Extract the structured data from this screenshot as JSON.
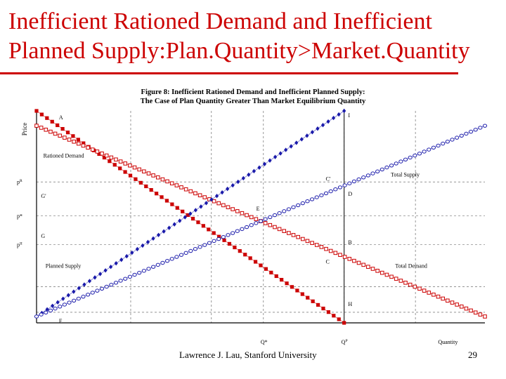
{
  "slide": {
    "title_line1": "Inefficient Rationed Demand and Inefficient",
    "title_line2": "Planned Supply:Plan.Quantity>Market.Quantity",
    "accent_color": "#cc0000",
    "footer": "Lawrence J. Lau, Stanford University",
    "page_number": "29"
  },
  "chart_data": {
    "type": "line",
    "title_line1": "Figure 8: Inefficient Rationed Demand and Inefficient Planned Supply:",
    "title_line2": "The Case of Plan Quantity Greater Than Market Equilibrium Quantity",
    "xlabel": "Quantity",
    "ylabel": "Price",
    "xlim": [
      0,
      100
    ],
    "ylim": [
      0,
      100
    ],
    "grid": true,
    "y_ticks": [
      {
        "label": "p^{II}",
        "value": 37
      },
      {
        "label": "p*",
        "value": 50.5
      },
      {
        "label": "p^{R}",
        "value": 66.5
      }
    ],
    "x_ticks": [
      {
        "label": "Q*",
        "value": 50.6
      },
      {
        "label": "Q^{P}",
        "value": 68.6
      },
      {
        "label": "Quantity",
        "value": 93
      }
    ],
    "x_gridlines": [
      21,
      39,
      50.6,
      68.6,
      84.5
    ],
    "y_gridlines": [
      5,
      17,
      37,
      50.5,
      66.5
    ],
    "plan_quantity_line": 68.6,
    "series": [
      {
        "name": "Rationed Demand",
        "style": "filled-square",
        "color": "#cc0000",
        "x": [
          0,
          68.6
        ],
        "y": [
          100,
          0
        ]
      },
      {
        "name": "Total Demand",
        "style": "hollow-square",
        "color": "#cc0000",
        "x": [
          0,
          100
        ],
        "y": [
          93,
          3
        ]
      },
      {
        "name": "Planned Supply",
        "style": "filled-diamond",
        "color": "#1a1aaa",
        "x": [
          0,
          68.6
        ],
        "y": [
          3,
          100
        ]
      },
      {
        "name": "Total Supply",
        "style": "hollow-diamond",
        "color": "#1a1aaa",
        "x": [
          0,
          100
        ],
        "y": [
          3,
          93
        ]
      }
    ],
    "annotations": [
      {
        "text": "A",
        "x": 5,
        "y": 97
      },
      {
        "text": "I",
        "x": 69.5,
        "y": 98
      },
      {
        "text": "Rationed Demand",
        "x": 1.5,
        "y": 79
      },
      {
        "text": "C'",
        "x": 64.5,
        "y": 68
      },
      {
        "text": "Total Supply",
        "x": 79,
        "y": 70
      },
      {
        "text": "G'",
        "x": 1,
        "y": 60
      },
      {
        "text": "D",
        "x": 69.5,
        "y": 61
      },
      {
        "text": "E",
        "x": 49,
        "y": 54
      },
      {
        "text": "G",
        "x": 1,
        "y": 41
      },
      {
        "text": "B",
        "x": 69.5,
        "y": 38
      },
      {
        "text": "C",
        "x": 64.5,
        "y": 29
      },
      {
        "text": "Planned Supply",
        "x": 2,
        "y": 27
      },
      {
        "text": "Total Demand",
        "x": 80,
        "y": 27
      },
      {
        "text": "H",
        "x": 69.5,
        "y": 9
      },
      {
        "text": "F",
        "x": 5,
        "y": 1
      }
    ]
  }
}
